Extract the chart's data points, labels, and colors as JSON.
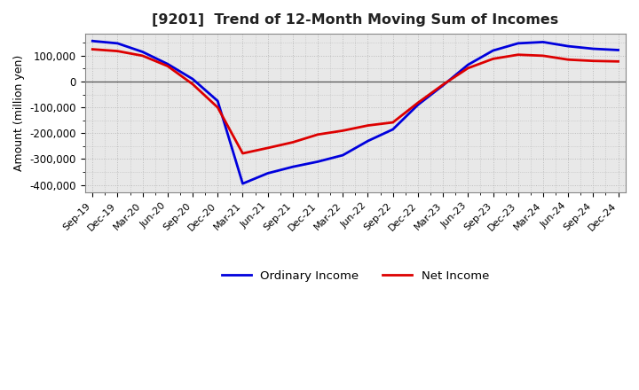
{
  "title": "[9201]  Trend of 12-Month Moving Sum of Incomes",
  "ylabel": "Amount (million yen)",
  "ylim": [
    -430000,
    185000
  ],
  "yticks": [
    -400000,
    -300000,
    -200000,
    -100000,
    0,
    100000
  ],
  "background_color": "#ffffff",
  "plot_bg_color": "#e8e8e8",
  "grid_color": "#bbbbbb",
  "ordinary_income_color": "#0000dd",
  "net_income_color": "#dd0000",
  "line_width": 2.0,
  "x_labels": [
    "Sep-19",
    "Dec-19",
    "Mar-20",
    "Jun-20",
    "Sep-20",
    "Dec-20",
    "Mar-21",
    "Jun-21",
    "Sep-21",
    "Dec-21",
    "Mar-22",
    "Jun-22",
    "Sep-22",
    "Dec-22",
    "Mar-23",
    "Jun-23",
    "Sep-23",
    "Dec-23",
    "Mar-24",
    "Jun-24",
    "Sep-24",
    "Dec-24"
  ],
  "ordinary_income": [
    157000,
    148000,
    115000,
    68000,
    10000,
    -75000,
    -395000,
    -355000,
    -330000,
    -310000,
    -285000,
    -230000,
    -185000,
    -90000,
    -15000,
    65000,
    120000,
    148000,
    153000,
    137000,
    127000,
    122000
  ],
  "net_income": [
    125000,
    118000,
    100000,
    60000,
    -10000,
    -100000,
    -278000,
    -257000,
    -235000,
    -205000,
    -190000,
    -170000,
    -158000,
    -82000,
    -12000,
    52000,
    88000,
    104000,
    100000,
    85000,
    80000,
    78000
  ]
}
